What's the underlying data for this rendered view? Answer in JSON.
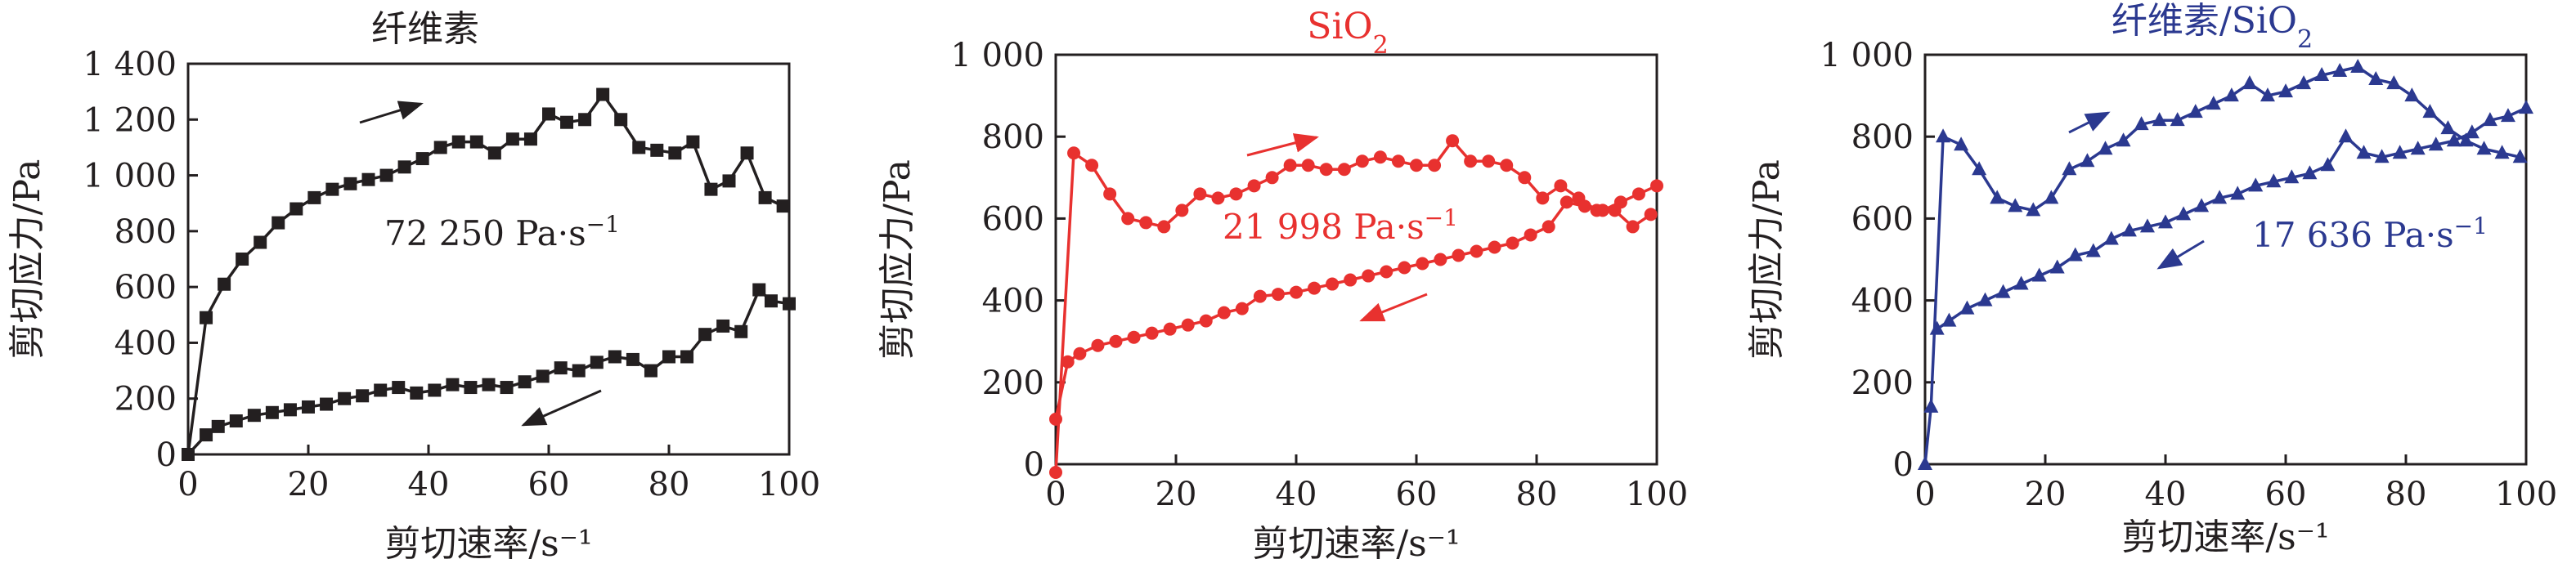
{
  "chart_data": [
    {
      "type": "line",
      "title": "纤维素",
      "xlabel": "剪切速率/s⁻¹",
      "ylabel": "剪切应力/Pa",
      "xlim": [
        0,
        100
      ],
      "ylim": [
        0,
        1400
      ],
      "xticks": [
        "0",
        "20",
        "40",
        "60",
        "80",
        "100"
      ],
      "yticks": [
        "0",
        "200",
        "400",
        "600",
        "800",
        "1 000",
        "1 200",
        "1 400"
      ],
      "color": "#231f20",
      "marker": "square",
      "annotation_value": "72 250",
      "annotation_unit": "Pa·s",
      "annotation_exp": "−1",
      "series": [
        {
          "name": "up",
          "x": [
            0,
            3,
            6,
            9,
            12,
            15,
            18,
            21,
            24,
            27,
            30,
            33,
            36,
            39,
            42,
            45,
            48,
            51,
            54,
            57,
            60,
            63,
            66,
            69,
            72,
            75,
            78,
            81,
            84,
            87,
            90,
            93,
            96,
            99
          ],
          "y": [
            0,
            490,
            610,
            700,
            760,
            830,
            880,
            920,
            950,
            970,
            985,
            1000,
            1030,
            1060,
            1100,
            1120,
            1120,
            1080,
            1130,
            1130,
            1220,
            1190,
            1200,
            1290,
            1200,
            1100,
            1090,
            1080,
            1120,
            950,
            980,
            1080,
            920,
            890
          ]
        },
        {
          "name": "down",
          "x": [
            100,
            97,
            95,
            92,
            89,
            86,
            83,
            80,
            77,
            74,
            71,
            68,
            65,
            62,
            59,
            56,
            53,
            50,
            47,
            44,
            41,
            38,
            35,
            32,
            29,
            26,
            23,
            20,
            17,
            14,
            11,
            8,
            5,
            3,
            0
          ],
          "y": [
            540,
            550,
            590,
            440,
            460,
            430,
            350,
            350,
            300,
            340,
            350,
            330,
            300,
            310,
            280,
            260,
            240,
            250,
            240,
            250,
            230,
            220,
            240,
            230,
            210,
            200,
            180,
            170,
            160,
            150,
            140,
            120,
            100,
            70,
            0
          ]
        }
      ]
    },
    {
      "type": "line",
      "title": "SiO",
      "title_sub": "2",
      "xlabel": "剪切速率/s⁻¹",
      "ylabel": "剪切应力/Pa",
      "xlim": [
        0,
        100
      ],
      "ylim": [
        0,
        1000
      ],
      "xticks": [
        "0",
        "20",
        "40",
        "60",
        "80",
        "100"
      ],
      "yticks": [
        "0",
        "200",
        "400",
        "600",
        "800",
        "1 000"
      ],
      "color": "#e8312f",
      "marker": "circle",
      "annotation_value": "21 998",
      "annotation_unit": "Pa·s",
      "annotation_exp": "−1",
      "series": [
        {
          "name": "up",
          "x": [
            0,
            3,
            6,
            9,
            12,
            15,
            18,
            21,
            24,
            27,
            30,
            33,
            36,
            39,
            42,
            45,
            48,
            51,
            54,
            57,
            60,
            63,
            66,
            69,
            72,
            75,
            78,
            81,
            84,
            87,
            90,
            93,
            96,
            99
          ],
          "y": [
            -20,
            760,
            730,
            660,
            600,
            590,
            580,
            620,
            660,
            650,
            660,
            680,
            700,
            730,
            730,
            720,
            720,
            740,
            750,
            740,
            730,
            730,
            790,
            740,
            740,
            730,
            700,
            650,
            680,
            650,
            620,
            620,
            580,
            610
          ]
        },
        {
          "name": "down",
          "x": [
            100,
            97,
            94,
            91,
            88,
            85,
            82,
            79,
            76,
            73,
            70,
            67,
            64,
            61,
            58,
            55,
            52,
            49,
            46,
            43,
            40,
            37,
            34,
            31,
            28,
            25,
            22,
            19,
            16,
            13,
            10,
            7,
            4,
            2,
            0
          ],
          "y": [
            680,
            660,
            640,
            620,
            630,
            640,
            580,
            560,
            540,
            530,
            520,
            510,
            500,
            490,
            480,
            470,
            460,
            450,
            440,
            430,
            420,
            415,
            410,
            380,
            370,
            350,
            340,
            330,
            320,
            310,
            300,
            290,
            270,
            250,
            110
          ]
        }
      ]
    },
    {
      "type": "line",
      "title": "纤维素/SiO",
      "title_sub": "2",
      "xlabel": "剪切速率/s⁻¹",
      "ylabel": "剪切应力/Pa",
      "xlim": [
        0,
        100
      ],
      "ylim": [
        0,
        1000
      ],
      "xticks": [
        "0",
        "20",
        "40",
        "60",
        "80",
        "100"
      ],
      "yticks": [
        "0",
        "200",
        "400",
        "600",
        "800",
        "1 000"
      ],
      "color": "#2b3990",
      "marker": "triangle",
      "annotation_value": "17 636",
      "annotation_unit": "Pa·s",
      "annotation_exp": "−1",
      "series": [
        {
          "name": "up",
          "x": [
            0,
            1,
            3,
            6,
            9,
            12,
            15,
            18,
            21,
            24,
            27,
            30,
            33,
            36,
            39,
            42,
            45,
            48,
            51,
            54,
            57,
            60,
            63,
            66,
            69,
            72,
            75,
            78,
            81,
            84,
            87,
            90,
            93,
            96,
            99
          ],
          "y": [
            0,
            140,
            800,
            780,
            720,
            650,
            630,
            620,
            650,
            720,
            740,
            770,
            790,
            830,
            840,
            840,
            860,
            880,
            900,
            930,
            900,
            910,
            930,
            950,
            960,
            970,
            940,
            930,
            900,
            860,
            820,
            790,
            770,
            760,
            750
          ]
        },
        {
          "name": "down",
          "x": [
            100,
            97,
            94,
            91,
            88,
            85,
            82,
            79,
            76,
            73,
            70,
            67,
            64,
            61,
            58,
            55,
            52,
            49,
            46,
            43,
            40,
            37,
            34,
            31,
            28,
            25,
            22,
            19,
            16,
            13,
            10,
            7,
            4,
            2
          ],
          "y": [
            870,
            850,
            840,
            810,
            790,
            780,
            770,
            760,
            750,
            760,
            800,
            730,
            710,
            700,
            690,
            680,
            660,
            650,
            630,
            610,
            590,
            580,
            570,
            550,
            520,
            510,
            480,
            460,
            440,
            420,
            400,
            380,
            350,
            330
          ]
        }
      ]
    }
  ]
}
